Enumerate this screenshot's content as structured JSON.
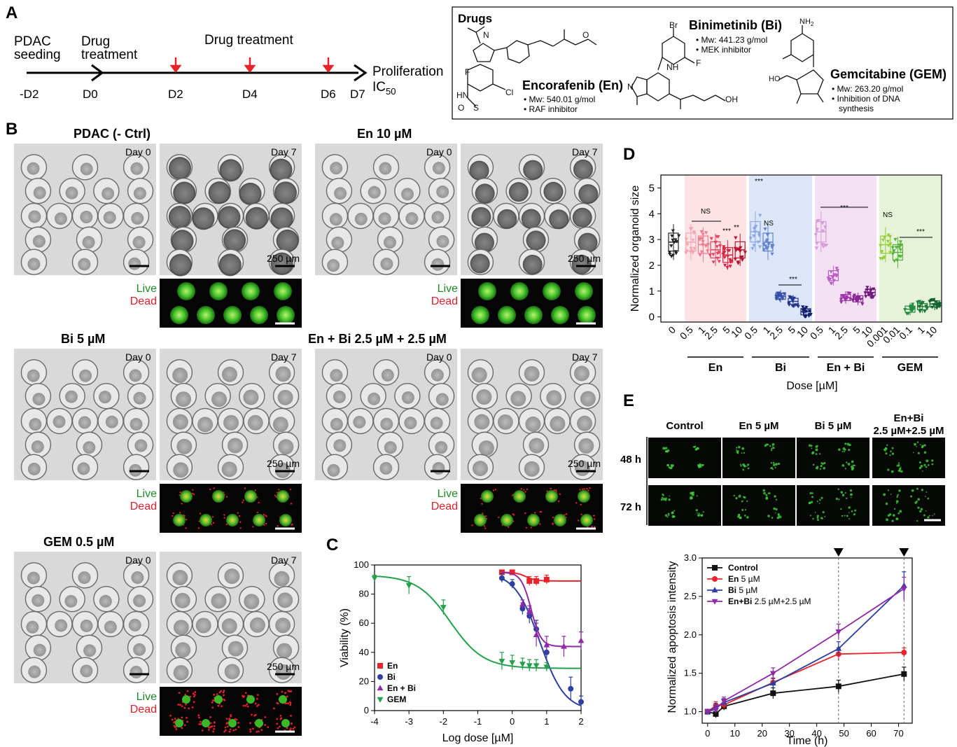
{
  "panels": {
    "A": {
      "letter": "A",
      "timeline": {
        "top_labels": {
          "seeding_1": "PDAC",
          "seeding_2": "seeding",
          "drug_1": "Drug",
          "drug_2": "treatment",
          "mid": "Drug treatment",
          "end_1": "Proliferation",
          "end_2": "IC",
          "end_sub": "50"
        },
        "days": [
          "-D2",
          "D0",
          "D2",
          "D4",
          "D6",
          "D7"
        ]
      },
      "drugs": {
        "title": "Drugs",
        "en": {
          "name": "Encorafenib (En)",
          "mw": "• Mw: 540.01 g/mol",
          "desc": "• RAF inhibitor"
        },
        "bi": {
          "name": "Binimetinib (Bi)",
          "mw": "• Mw: 441.23 g/mol",
          "desc": "• MEK inhibitor"
        },
        "gem": {
          "name": "Gemcitabine (GEM)",
          "mw": "• Mw: 263.20 g/mol",
          "desc1": "• Inhibition of DNA",
          "desc2": "synthesis"
        },
        "atoms": {
          "F": "F",
          "Cl": "Cl",
          "HN": "HN",
          "N": "N",
          "O": "O",
          "S": "S",
          "O2": "O",
          "Br": "Br",
          "NH": "NH",
          "OH": "OH",
          "HO": "HO",
          "NH2": "NH",
          "NH2sub": "2",
          "Fb": "F",
          "Nb": "N"
        }
      }
    },
    "B": {
      "letter": "B",
      "day0": "Day 0",
      "day7": "Day 7",
      "scale": "250 µm",
      "live": "Live",
      "dead": "Dead",
      "titles": [
        "PDAC (- Ctrl)",
        "En 10 µM",
        "Bi 5 µM",
        "En + Bi 2.5 µM + 2.5 µM",
        "GEM 0.5 µM"
      ]
    },
    "C": {
      "letter": "C"
    },
    "D": {
      "letter": "D"
    },
    "E": {
      "letter": "E",
      "col_headers": [
        "Control",
        "En 5 µM",
        "Bi 5 µM",
        "En+Bi",
        "2.5 µM+2.5 µM"
      ],
      "row_headers": [
        "48 h",
        "72 h"
      ]
    }
  },
  "chart_data": [
    {
      "id": "C",
      "type": "scatter",
      "title": "",
      "xlabel": "Log dose [µM]",
      "ylabel": "Viability (%)",
      "xlim": [
        -4,
        2
      ],
      "ylim": [
        0,
        100
      ],
      "xticks": [
        -4,
        -3,
        -2,
        -1,
        0,
        1,
        2
      ],
      "yticks": [
        0,
        20,
        40,
        60,
        80,
        100
      ],
      "legend": "bottom-left",
      "series": [
        {
          "name": "En",
          "color": "#e8242a",
          "marker": "square",
          "x": [
            -0.3,
            0,
            0.5,
            0.7,
            1.0
          ],
          "y": [
            95,
            95,
            89,
            89,
            90
          ],
          "err": [
            1,
            1,
            3,
            3,
            3
          ],
          "fit": {
            "top": 95,
            "bottom": 89,
            "ic50": 0.4,
            "hill": 3
          }
        },
        {
          "name": "Bi",
          "color": "#2b3fa0",
          "marker": "circle",
          "x": [
            -0.3,
            0,
            0.3,
            0.5,
            0.7,
            1.0,
            1.7,
            2.0
          ],
          "y": [
            91,
            87,
            70,
            65,
            56,
            40,
            15,
            6
          ],
          "err": [
            3,
            3,
            4,
            5,
            6,
            5,
            8,
            4
          ],
          "fit": {
            "top": 95,
            "bottom": 0,
            "ic50": 0.8,
            "hill": 1.2
          }
        },
        {
          "name": "En + Bi",
          "color": "#8e2aa6",
          "marker": "triangle-up",
          "x": [
            0.3,
            0.5,
            0.7,
            1.0,
            1.5,
            2.0
          ],
          "y": [
            73,
            68,
            52,
            45,
            44,
            48
          ],
          "err": [
            3,
            4,
            8,
            6,
            7,
            6
          ],
          "fit": {
            "top": 95,
            "bottom": 44,
            "ic50": 0.55,
            "hill": 3
          }
        },
        {
          "name": "GEM",
          "color": "#22a04a",
          "marker": "triangle-down",
          "x": [
            -4,
            -3,
            -2,
            -0.3,
            0,
            0.3,
            0.5,
            0.7,
            1.0
          ],
          "y": [
            91,
            86,
            71,
            34,
            33,
            32,
            31,
            31,
            30
          ],
          "err": [
            2,
            6,
            5,
            6,
            5,
            4,
            4,
            4,
            3
          ],
          "fit": {
            "top": 93,
            "bottom": 29,
            "ic50": -1.8,
            "hill": 0.9
          }
        }
      ]
    },
    {
      "id": "D",
      "type": "box",
      "title": "",
      "xlabel": "Dose [µM]",
      "ylabel": "Normalized organoid size",
      "ylim": [
        -0.2,
        5.5
      ],
      "yticks": [
        0,
        1,
        2,
        3,
        4,
        5
      ],
      "groups": [
        {
          "name": "",
          "bg": "",
          "doses": [
            "0"
          ],
          "colors": [
            "#222222"
          ],
          "medians": [
            2.9
          ]
        },
        {
          "name": "En",
          "bg": "#fde3e6",
          "doses": [
            "0.5",
            "1",
            "2.5",
            "5",
            "10"
          ],
          "colors": [
            "#f4a5b3",
            "#ee7c8e",
            "#e34660",
            "#d81f3d",
            "#b21430"
          ],
          "medians": [
            2.9,
            2.8,
            2.6,
            2.4,
            2.6
          ]
        },
        {
          "name": "Bi",
          "bg": "#dce6f8",
          "doses": [
            "0.5",
            "1",
            "2.5",
            "5",
            "10"
          ],
          "colors": [
            "#8aa8e6",
            "#5f83cc",
            "#3650a8",
            "#24378e",
            "#13206d"
          ],
          "medians": [
            3.3,
            2.9,
            0.8,
            0.6,
            0.2
          ]
        },
        {
          "name": "En + Bi",
          "bg": "#f4e0f3",
          "doses": [
            "0.5",
            "1",
            "2.5",
            "5",
            "10"
          ],
          "colors": [
            "#d69ad9",
            "#bb5ec2",
            "#9c34a6",
            "#8a2596",
            "#6e1578"
          ],
          "medians": [
            3.3,
            1.6,
            0.75,
            0.7,
            0.95
          ]
        },
        {
          "name": "GEM",
          "bg": "#e7f3d8",
          "doses": [
            "0.001",
            "0.01",
            "0.1",
            "1",
            "10"
          ],
          "colors": [
            "#97cc3a",
            "#54b23d",
            "#238c40",
            "#197a3a",
            "#0f6030"
          ],
          "medians": [
            2.8,
            2.5,
            0.3,
            0.4,
            0.5
          ]
        }
      ],
      "annotations": [
        "NS",
        "***",
        "**",
        "***",
        "NS",
        "***",
        "***",
        "NS",
        "***"
      ]
    },
    {
      "id": "E",
      "type": "line",
      "title": "",
      "xlabel": "Time (h)",
      "ylabel": "Normalized apoptosis intensity",
      "xlim": [
        -2,
        75
      ],
      "ylim": [
        0.85,
        3.0
      ],
      "xticks": [
        0,
        10,
        20,
        30,
        40,
        50,
        60,
        70
      ],
      "yticks": [
        1.0,
        1.5,
        2.0,
        2.5,
        3.0
      ],
      "legend": "top-left",
      "vlines": [
        48,
        72
      ],
      "x": [
        0,
        3,
        6,
        24,
        48,
        72
      ],
      "series": [
        {
          "name": "Control",
          "name_rest": "",
          "color": "#111111",
          "marker": "square",
          "values": [
            1.0,
            0.97,
            1.07,
            1.24,
            1.33,
            1.49
          ],
          "err": [
            0.03,
            0.05,
            0.05,
            0.07,
            0.08,
            0.09
          ]
        },
        {
          "name": "En",
          "name_rest": " 5 µM",
          "color": "#e8242a",
          "marker": "circle",
          "values": [
            1.0,
            1.08,
            1.09,
            1.38,
            1.75,
            1.77
          ],
          "err": [
            0.03,
            0.05,
            0.05,
            0.06,
            0.08,
            0.06
          ]
        },
        {
          "name": "Bi",
          "name_rest": " 5 µM",
          "color": "#2b3fa0",
          "marker": "triangle-up",
          "values": [
            1.0,
            1.06,
            1.12,
            1.37,
            1.82,
            2.64
          ],
          "err": [
            0.03,
            0.05,
            0.05,
            0.06,
            0.09,
            0.18
          ]
        },
        {
          "name": "En+Bi",
          "name_rest": " 2.5 µM+2.5 µM",
          "color": "#8e2aa6",
          "marker": "triangle-down",
          "values": [
            1.0,
            1.03,
            1.14,
            1.5,
            2.04,
            2.6
          ],
          "err": [
            0.03,
            0.05,
            0.05,
            0.07,
            0.1,
            0.15
          ]
        }
      ]
    }
  ]
}
